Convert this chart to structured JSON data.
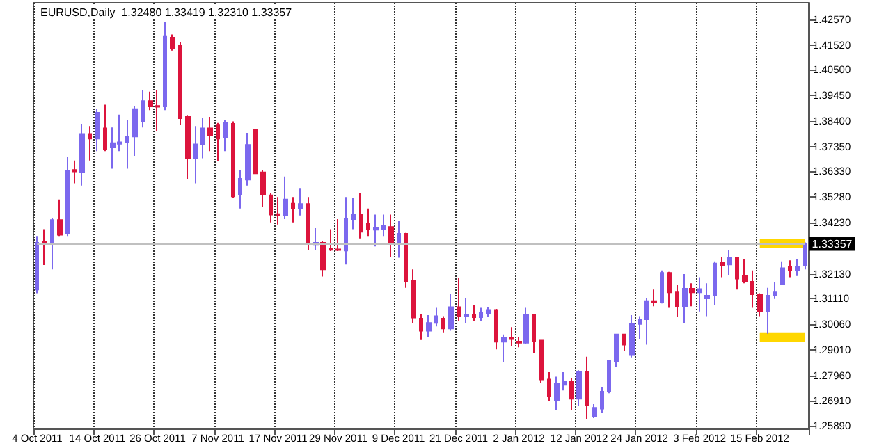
{
  "chart_data": {
    "type": "candlestick",
    "title": "EURUSD,Daily  1.32480 1.33419 1.32310 1.33357",
    "categories": [
      "4 Oct 2011",
      null,
      null,
      null,
      null,
      null,
      null,
      null,
      "14 Oct 2011",
      null,
      null,
      null,
      null,
      null,
      null,
      null,
      "26 Oct 2011",
      null,
      null,
      null,
      null,
      null,
      null,
      null,
      "7 Nov 2011",
      null,
      null,
      null,
      null,
      null,
      null,
      null,
      "17 Nov 2011",
      null,
      null,
      null,
      null,
      null,
      null,
      null,
      "29 Nov 2011",
      null,
      null,
      null,
      null,
      null,
      null,
      null,
      "9 Dec 2011",
      null,
      null,
      null,
      null,
      null,
      null,
      null,
      "21 Dec 2011",
      null,
      null,
      null,
      null,
      null,
      null,
      null,
      "2 Jan 2012",
      null,
      null,
      null,
      null,
      null,
      null,
      null,
      "12 Jan 2012",
      null,
      null,
      null,
      null,
      null,
      null,
      null,
      "24 Jan 2012",
      null,
      null,
      null,
      null,
      null,
      null,
      null,
      "3 Feb 2012",
      null,
      null,
      null,
      null,
      null,
      null,
      null,
      "15 Feb 2012",
      null,
      null,
      null,
      null,
      null,
      null
    ],
    "ohlc": [
      [
        1.3148,
        1.3368,
        1.3133,
        1.334
      ],
      [
        1.3345,
        1.3396,
        1.3249,
        1.3338
      ],
      [
        1.3343,
        1.3443,
        1.3231,
        1.3434
      ],
      [
        1.3434,
        1.3518,
        1.3368,
        1.3373
      ],
      [
        1.3377,
        1.3693,
        1.3368,
        1.3637
      ],
      [
        1.3639,
        1.3678,
        1.3584,
        1.3633
      ],
      [
        1.3631,
        1.3828,
        1.3575,
        1.3787
      ],
      [
        1.3787,
        1.3819,
        1.3678,
        1.3768
      ],
      [
        1.3768,
        1.3889,
        1.3716,
        1.3874
      ],
      [
        1.381,
        1.3907,
        1.3716,
        1.3725
      ],
      [
        1.3731,
        1.3813,
        1.3644,
        1.3749
      ],
      [
        1.3746,
        1.3866,
        1.3716,
        1.3753
      ],
      [
        1.3753,
        1.3843,
        1.3644,
        1.3776
      ],
      [
        1.3776,
        1.39,
        1.3697,
        1.3889
      ],
      [
        1.3838,
        1.3968,
        1.3813,
        1.3922
      ],
      [
        1.3922,
        1.396,
        1.3885,
        1.39
      ],
      [
        1.3902,
        1.3968,
        1.38,
        1.3898
      ],
      [
        1.39,
        1.4246,
        1.3885,
        1.4186
      ],
      [
        1.4182,
        1.4195,
        1.4129,
        1.4139
      ],
      [
        1.4148,
        1.4163,
        1.3825,
        1.3851
      ],
      [
        1.3857,
        1.3862,
        1.3603,
        1.3687
      ],
      [
        1.3687,
        1.3819,
        1.3584,
        1.3744
      ],
      [
        1.3744,
        1.3851,
        1.3687,
        1.381
      ],
      [
        1.381,
        1.3857,
        1.3716,
        1.378
      ],
      [
        1.3825,
        1.3832,
        1.3674,
        1.3768
      ],
      [
        1.3772,
        1.3843,
        1.3716,
        1.3832
      ],
      [
        1.3828,
        1.3838,
        1.3524,
        1.3531
      ],
      [
        1.3537,
        1.364,
        1.3481,
        1.3603
      ],
      [
        1.3599,
        1.3791,
        1.3575,
        1.3742
      ],
      [
        1.3804,
        1.3806,
        1.3622,
        1.3625
      ],
      [
        1.3629,
        1.3637,
        1.3486,
        1.3537
      ],
      [
        1.3535,
        1.3546,
        1.3424,
        1.3456
      ],
      [
        1.3458,
        1.3528,
        1.3415,
        1.3454
      ],
      [
        1.3452,
        1.3612,
        1.3437,
        1.3518
      ],
      [
        1.3501,
        1.3528,
        1.3424,
        1.3481
      ],
      [
        1.3481,
        1.3565,
        1.3452,
        1.3499
      ],
      [
        1.3499,
        1.3528,
        1.3311,
        1.3336
      ],
      [
        1.3334,
        1.34,
        1.3311,
        1.334
      ],
      [
        1.334,
        1.3349,
        1.3202,
        1.3231
      ],
      [
        1.3315,
        1.3396,
        1.3306,
        1.3311
      ],
      [
        1.3313,
        1.3437,
        1.3306,
        1.331
      ],
      [
        1.3308,
        1.3528,
        1.3251,
        1.3437
      ],
      [
        1.3437,
        1.3524,
        1.3396,
        1.3456
      ],
      [
        1.3456,
        1.3543,
        1.3358,
        1.3385
      ],
      [
        1.3419,
        1.3481,
        1.3368,
        1.3396
      ],
      [
        1.3394,
        1.3456,
        1.3325,
        1.34
      ],
      [
        1.3396,
        1.3456,
        1.3368,
        1.3411
      ],
      [
        1.3405,
        1.3456,
        1.3283,
        1.3336
      ],
      [
        1.3336,
        1.343,
        1.3279,
        1.3377
      ],
      [
        1.3377,
        1.3381,
        1.3155,
        1.318
      ],
      [
        1.3184,
        1.3231,
        1.3011,
        1.3033
      ],
      [
        1.3029,
        1.3046,
        1.2941,
        1.2979
      ],
      [
        1.2979,
        1.3043,
        1.2954,
        1.3011
      ],
      [
        1.3011,
        1.3073,
        1.2997,
        1.3039
      ],
      [
        1.3029,
        1.3039,
        1.2973,
        1.2988
      ],
      [
        1.2988,
        1.3129,
        1.2979,
        1.3076
      ],
      [
        1.3076,
        1.3197,
        1.302,
        1.3039
      ],
      [
        1.3039,
        1.3114,
        1.3011,
        1.3046
      ],
      [
        1.3043,
        1.3086,
        1.302,
        1.3035
      ],
      [
        1.3035,
        1.3073,
        1.302,
        1.3054
      ],
      [
        1.305,
        1.3076,
        1.3035,
        1.3065
      ],
      [
        1.3065,
        1.3069,
        1.2903,
        1.2934
      ],
      [
        1.2934,
        1.2964,
        1.2851,
        1.295
      ],
      [
        1.2952,
        1.2994,
        1.2917,
        1.2945
      ],
      [
        1.2935,
        1.2954,
        1.2911,
        1.293
      ],
      [
        1.293,
        1.3073,
        1.2926,
        1.3043
      ],
      [
        1.3043,
        1.3048,
        1.2888,
        1.2935
      ],
      [
        1.2939,
        1.2941,
        1.2766,
        1.2779
      ],
      [
        1.2779,
        1.2809,
        1.2689,
        1.271
      ],
      [
        1.2693,
        1.2791,
        1.2653,
        1.2761
      ],
      [
        1.2757,
        1.2809,
        1.2734,
        1.2772
      ],
      [
        1.2772,
        1.2785,
        1.2653,
        1.27
      ],
      [
        1.27,
        1.2817,
        1.2672,
        1.2809
      ],
      [
        1.2809,
        1.2873,
        1.2616,
        1.2672
      ],
      [
        1.2629,
        1.2678,
        1.2621,
        1.2663
      ],
      [
        1.2659,
        1.2747,
        1.2644,
        1.2729
      ],
      [
        1.2729,
        1.286,
        1.2723,
        1.2855
      ],
      [
        1.2855,
        1.2967,
        1.2832,
        1.2964
      ],
      [
        1.2964,
        1.2967,
        1.2898,
        1.2922
      ],
      [
        1.2879,
        1.3043,
        1.287,
        1.3007
      ],
      [
        1.3007,
        1.3039,
        1.2945,
        1.3026
      ],
      [
        1.3026,
        1.3114,
        1.2922,
        1.3101
      ],
      [
        1.3101,
        1.3148,
        1.308,
        1.3095
      ],
      [
        1.3095,
        1.3227,
        1.3091,
        1.3217
      ],
      [
        1.3217,
        1.3221,
        1.3073,
        1.3137
      ],
      [
        1.3137,
        1.3167,
        1.3035,
        1.308
      ],
      [
        1.308,
        1.3212,
        1.3011,
        1.3152
      ],
      [
        1.3152,
        1.3174,
        1.308,
        1.3137
      ],
      [
        1.3137,
        1.3199,
        1.3058,
        1.315
      ],
      [
        1.3112,
        1.3174,
        1.3039,
        1.3123
      ],
      [
        1.3123,
        1.3264,
        1.3086,
        1.3255
      ],
      [
        1.3259,
        1.3283,
        1.3199,
        1.3249
      ],
      [
        1.3251,
        1.3311,
        1.3208,
        1.3279
      ],
      [
        1.3279,
        1.3283,
        1.3148,
        1.3193
      ],
      [
        1.3204,
        1.3274,
        1.3174,
        1.318
      ],
      [
        1.318,
        1.3227,
        1.3073,
        1.3129
      ],
      [
        1.3129,
        1.3133,
        1.3039,
        1.3058
      ],
      [
        1.3058,
        1.3155,
        1.2967,
        1.3123
      ],
      [
        1.3123,
        1.318,
        1.311,
        1.3137
      ],
      [
        1.317,
        1.3264,
        1.3167,
        1.3236
      ],
      [
        1.324,
        1.3268,
        1.3199,
        1.3227
      ],
      [
        1.3227,
        1.3274,
        1.3204,
        1.3242
      ],
      [
        1.3248,
        1.33419,
        1.3231,
        1.33357
      ]
    ],
    "colors": [
      "#7b68ee",
      "#dc143c",
      "#7b68ee",
      "#dc143c",
      "#7b68ee",
      "#dc143c",
      "#7b68ee",
      "#dc143c",
      "#7b68ee",
      "#dc143c",
      "#7b68ee",
      "#7b68ee",
      "#7b68ee",
      "#7b68ee",
      "#7b68ee",
      "#dc143c",
      "#dc143c",
      "#7b68ee",
      "#dc143c",
      "#dc143c",
      "#dc143c",
      "#7b68ee",
      "#7b68ee",
      "#dc143c",
      "#dc143c",
      "#7b68ee",
      "#dc143c",
      "#7b68ee",
      "#7b68ee",
      "#dc143c",
      "#dc143c",
      "#dc143c",
      "#dc143c",
      "#7b68ee",
      "#dc143c",
      "#7b68ee",
      "#dc143c",
      "#7b68ee",
      "#dc143c",
      "#dc143c",
      "#dc143c",
      "#7b68ee",
      "#7b68ee",
      "#dc143c",
      "#dc143c",
      "#7b68ee",
      "#7b68ee",
      "#dc143c",
      "#7b68ee",
      "#dc143c",
      "#dc143c",
      "#dc143c",
      "#7b68ee",
      "#7b68ee",
      "#dc143c",
      "#7b68ee",
      "#dc143c",
      "#7b68ee",
      "#dc143c",
      "#7b68ee",
      "#7b68ee",
      "#dc143c",
      "#7b68ee",
      "#dc143c",
      "#dc143c",
      "#7b68ee",
      "#dc143c",
      "#dc143c",
      "#dc143c",
      "#7b68ee",
      "#7b68ee",
      "#dc143c",
      "#7b68ee",
      "#dc143c",
      "#7b68ee",
      "#7b68ee",
      "#7b68ee",
      "#7b68ee",
      "#dc143c",
      "#7b68ee",
      "#7b68ee",
      "#7b68ee",
      "#dc143c",
      "#7b68ee",
      "#dc143c",
      "#dc143c",
      "#7b68ee",
      "#dc143c",
      "#7b68ee",
      "#7b68ee",
      "#7b68ee",
      "#dc143c",
      "#7b68ee",
      "#dc143c",
      "#dc143c",
      "#dc143c",
      "#dc143c",
      "#7b68ee",
      "#7b68ee",
      "#7b68ee",
      "#dc143c",
      "#7b68ee",
      "#7b68ee"
    ],
    "ylim": [
      1.2578,
      1.4325
    ],
    "yticks": [
      {
        "value": 1.4257,
        "label": "1.42570"
      },
      {
        "value": 1.4152,
        "label": "1.41520"
      },
      {
        "value": 1.405,
        "label": "1.40500"
      },
      {
        "value": 1.3945,
        "label": "1.39450"
      },
      {
        "value": 1.384,
        "label": "1.38400"
      },
      {
        "value": 1.3735,
        "label": "1.37350"
      },
      {
        "value": 1.3633,
        "label": "1.36330"
      },
      {
        "value": 1.3528,
        "label": "1.35280"
      },
      {
        "value": 1.3423,
        "label": "1.34230"
      },
      {
        "value": 1.3213,
        "label": "1.32130"
      },
      {
        "value": 1.3111,
        "label": "1.31110"
      },
      {
        "value": 1.3006,
        "label": "1.30060"
      },
      {
        "value": 1.2901,
        "label": "1.29010"
      },
      {
        "value": 1.2796,
        "label": "1.27960"
      },
      {
        "value": 1.2691,
        "label": "1.26910"
      },
      {
        "value": 1.2589,
        "label": "1.25890"
      }
    ],
    "ref_lines": [
      {
        "axis": "y",
        "value": 1.33357,
        "label": "1.33357",
        "color": "#c0c0c0"
      }
    ],
    "bands": [
      {
        "axis": "y",
        "from": 1.3318,
        "to": 1.3355,
        "color": "#ffd700"
      },
      {
        "axis": "y",
        "from": 1.2935,
        "to": 1.2973,
        "color": "#ffd700"
      }
    ],
    "grid": "x"
  }
}
